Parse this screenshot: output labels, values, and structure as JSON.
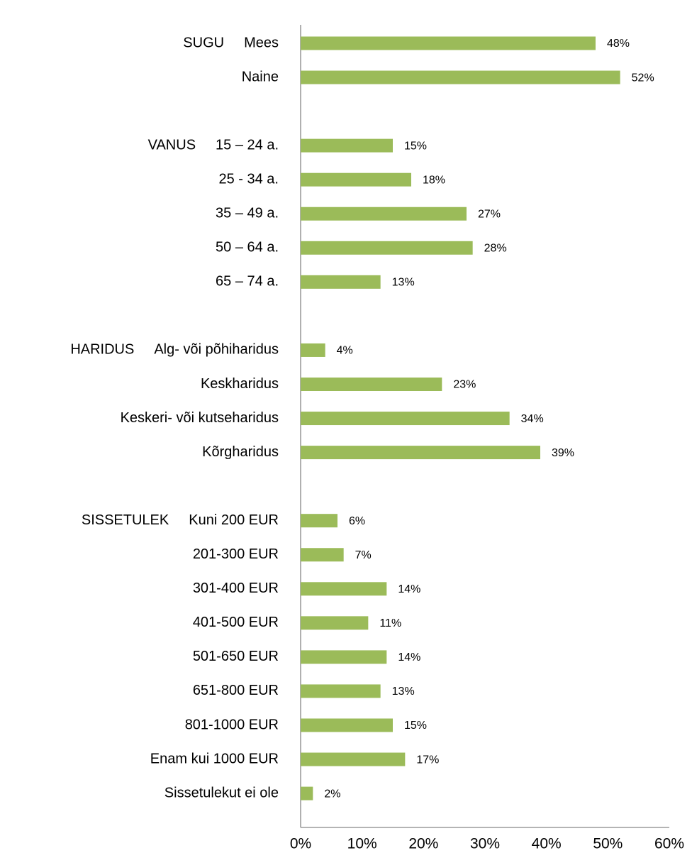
{
  "chart_data": {
    "type": "hbar",
    "categories": [
      "Mees",
      "Naine",
      null,
      "15 – 24 a.",
      "25 - 34 a.",
      "35 – 49 a.",
      "50 – 64 a.",
      "65 – 74 a.",
      null,
      "Alg- või põhiharidus",
      "Keskharidus",
      "Keskeri- või kutseharidus",
      "Kõrgharidus",
      null,
      "Kuni 200 EUR",
      "201-300 EUR",
      "301-400 EUR",
      "401-500 EUR",
      "501-650 EUR",
      "651-800 EUR",
      "801-1000 EUR",
      "Enam kui 1000 EUR",
      "Sissetulekut ei ole"
    ],
    "group_labels": [
      "SUGU",
      null,
      null,
      "VANUS",
      null,
      null,
      null,
      null,
      null,
      "HARIDUS",
      null,
      null,
      null,
      null,
      "SISSETULEK",
      null,
      null,
      null,
      null,
      null,
      null,
      null,
      null
    ],
    "values": [
      48,
      52,
      null,
      15,
      18,
      27,
      28,
      13,
      null,
      4,
      23,
      34,
      39,
      null,
      6,
      7,
      14,
      11,
      14,
      13,
      15,
      17,
      2
    ],
    "value_labels": [
      "48%",
      "52%",
      null,
      "15%",
      "18%",
      "27%",
      "28%",
      "13%",
      null,
      "4%",
      "23%",
      "34%",
      "39%",
      null,
      "6%",
      "7%",
      "14%",
      "11%",
      "14%",
      "13%",
      "15%",
      "17%",
      "2%"
    ],
    "color": "#9bbb59",
    "xlim": [
      0,
      60
    ],
    "xticks": [
      {
        "value": 0,
        "label": "0%"
      },
      {
        "value": 10,
        "label": "10%"
      },
      {
        "value": 20,
        "label": "20%"
      },
      {
        "value": 30,
        "label": "30%"
      },
      {
        "value": 40,
        "label": "40%"
      },
      {
        "value": 50,
        "label": "50%"
      },
      {
        "value": 60,
        "label": "60%"
      }
    ]
  }
}
